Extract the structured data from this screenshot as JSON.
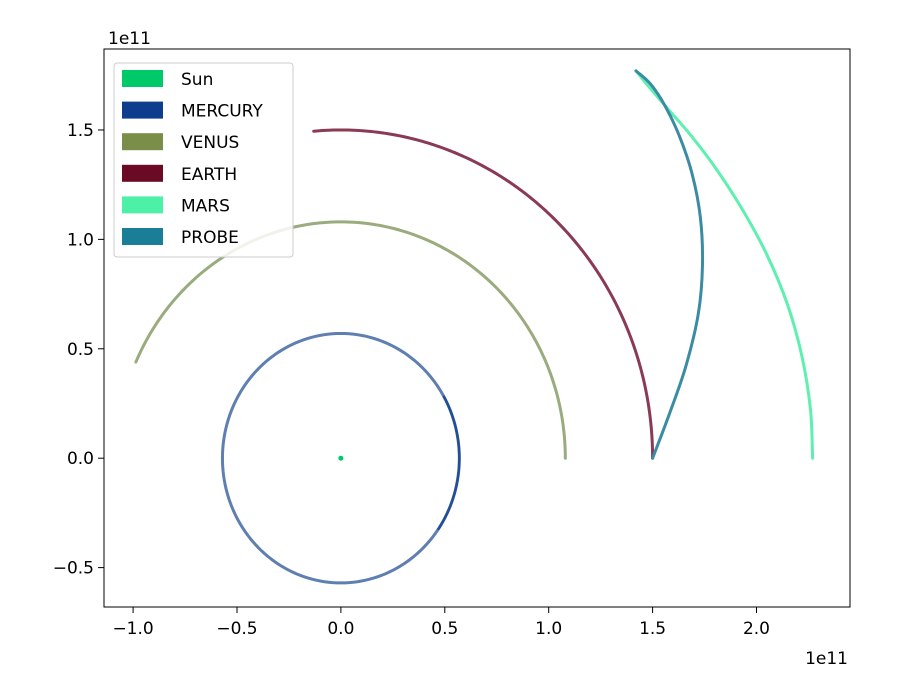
{
  "chart_data": {
    "type": "line",
    "title": "",
    "xlabel": "",
    "ylabel": "",
    "x_offset_label": "1e11",
    "y_offset_label": "1e11",
    "xlim": [
      -1.14,
      2.45
    ],
    "ylim": [
      -0.68,
      1.87
    ],
    "x_ticks": [
      -1.0,
      -0.5,
      0.0,
      0.5,
      1.0,
      1.5,
      2.0
    ],
    "x_tick_labels": [
      "−1.0",
      "−0.5",
      "0.0",
      "0.5",
      "1.0",
      "1.5",
      "2.0"
    ],
    "y_ticks": [
      -0.5,
      0.0,
      0.5,
      1.0,
      1.5
    ],
    "y_tick_labels": [
      "−0.5",
      "0.0",
      "0.5",
      "1.0",
      "1.5"
    ],
    "grid": false,
    "legend_position": "top-left",
    "legend": [
      {
        "label": "Sun",
        "color": "#00c96a"
      },
      {
        "label": "MERCURY",
        "color": "#0d3d8c"
      },
      {
        "label": "VENUS",
        "color": "#7a8e4a"
      },
      {
        "label": "EARTH",
        "color": "#6b0a25"
      },
      {
        "label": "MARS",
        "color": "#4cf0a6"
      },
      {
        "label": "PROBE",
        "color": "#1a7f96"
      }
    ],
    "series": [
      {
        "name": "Sun",
        "color": "#00c96a",
        "kind": "point",
        "x": [
          0.0
        ],
        "y": [
          0.0
        ]
      },
      {
        "name": "MERCURY",
        "color": "#5e7fb0",
        "highlight_color": "#0d3d8c",
        "kind": "circle",
        "center": [
          0.0,
          0.0
        ],
        "radius": 0.57
      },
      {
        "name": "VENUS",
        "color": "#9aab7e",
        "kind": "arc",
        "center": [
          0.0,
          0.0
        ],
        "radius": 1.08,
        "start_deg": 0,
        "end_deg": 156
      },
      {
        "name": "EARTH",
        "color": "#8a3a52",
        "kind": "arc",
        "center": [
          0.0,
          0.0
        ],
        "radius": 1.5,
        "start_deg": 0,
        "end_deg": 95
      },
      {
        "name": "MARS",
        "color": "#5ef0ae",
        "kind": "points",
        "x": [
          2.27,
          2.26,
          2.22,
          2.15,
          2.05,
          1.93,
          1.8,
          1.68,
          1.57,
          1.48,
          1.42
        ],
        "y": [
          0.0,
          0.22,
          0.46,
          0.7,
          0.93,
          1.14,
          1.33,
          1.48,
          1.6,
          1.7,
          1.77
        ]
      },
      {
        "name": "PROBE",
        "color": "#3b8ca3",
        "kind": "points",
        "x": [
          1.5,
          1.58,
          1.66,
          1.72,
          1.74,
          1.73,
          1.69,
          1.63,
          1.56,
          1.49,
          1.42
        ],
        "y": [
          0.0,
          0.2,
          0.42,
          0.66,
          0.88,
          1.1,
          1.3,
          1.47,
          1.61,
          1.71,
          1.77
        ]
      }
    ]
  }
}
